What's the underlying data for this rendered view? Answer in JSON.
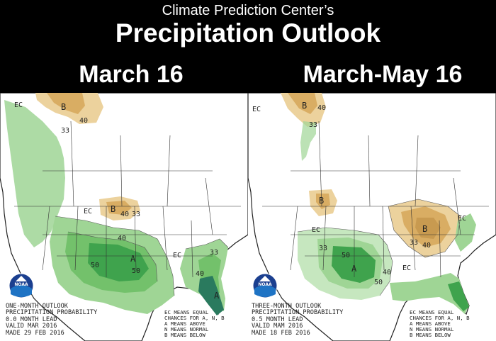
{
  "header": {
    "agency": "Climate Prediction Center’s",
    "title": "Precipitation Outlook"
  },
  "colors": {
    "above_light": "#c6e7bf",
    "above_33": "#9fd595",
    "above_40": "#73c16b",
    "above_50": "#3fa34d",
    "above_70": "#2a7a5e",
    "below_33": "#ecd29d",
    "below_40": "#d9ad63",
    "below_50": "#b98a42",
    "header_bg": "#000000",
    "land_outline": "#222222"
  },
  "panels": {
    "left": {
      "title": "March 16",
      "logo": "NOAA",
      "caption": [
        "ONE-MONTH OUTLOOK",
        "PRECIPITATION PROBABILITY",
        "0.0 MONTH LEAD",
        "VALID MAR 2016",
        "MADE 29 FEB 2016"
      ],
      "key": [
        "EC MEANS EQUAL",
        "CHANCES FOR A, N, B",
        "A MEANS ABOVE",
        "N MEANS NORMAL",
        "B MEANS BELOW"
      ],
      "labels": {
        "ec_west": "EC",
        "ec_east": "EC",
        "ec_southeast": "EC",
        "b_north": "B",
        "b_plains": "B",
        "a_south": "A",
        "a_florida": "A",
        "b33": "33",
        "b40": "40",
        "a33": "33",
        "a40": "40",
        "a50": "50"
      }
    },
    "right": {
      "title": "March-May 16",
      "logo": "NOAA",
      "caption": [
        "THREE-MONTH OUTLOOK",
        "PRECIPITATION PROBABILITY",
        "0.5 MONTH LEAD",
        "VALID MAM 2016",
        "MADE 18 FEB 2016"
      ],
      "key": [
        "EC MEANS EQUAL",
        "CHANCES FOR A, N, B",
        "A MEANS ABOVE",
        "N MEANS NORMAL",
        "B MEANS BELOW"
      ],
      "labels": {
        "ec_nw": "EC",
        "ec_west": "EC",
        "ec_east": "EC",
        "ec_central": "EC",
        "b_north": "B",
        "b_plains": "B",
        "b_lakes": "B",
        "a_south": "A",
        "b33": "33",
        "b40": "40",
        "a33": "33",
        "a40": "40",
        "a50": "50"
      }
    }
  }
}
